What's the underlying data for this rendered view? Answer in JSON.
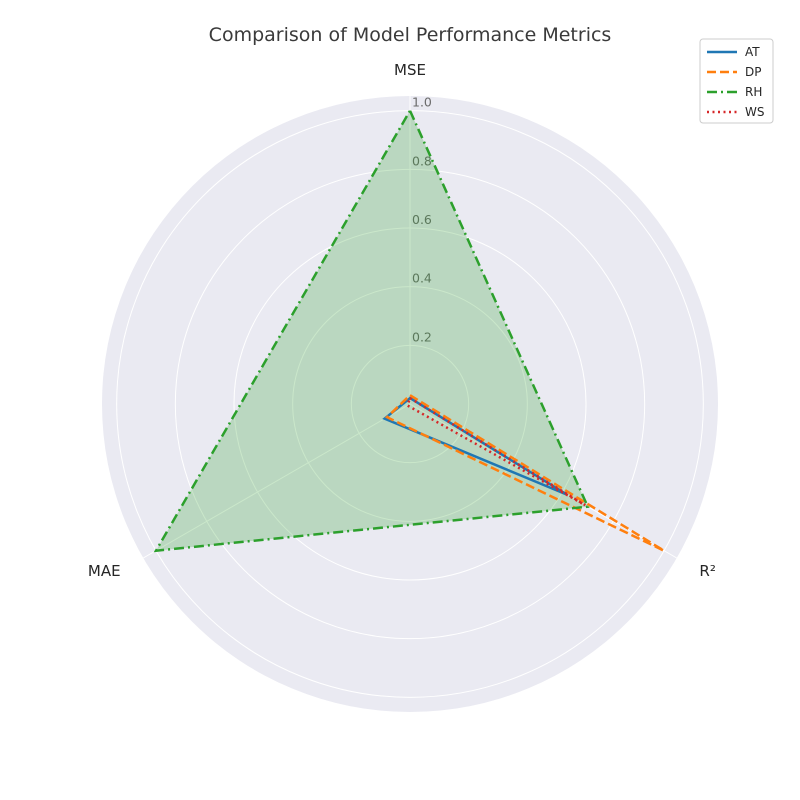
{
  "chart_data": {
    "type": "radar",
    "title": "Comparison of Model Performance Metrics",
    "axes": [
      "MSE",
      "R²",
      "MAE"
    ],
    "rlim": [
      0,
      1.05
    ],
    "rticks": [
      0.2,
      0.4,
      0.6,
      0.8,
      1.0
    ],
    "rtick_labels": [
      "0.2",
      "0.4",
      "0.6",
      "0.8",
      "1.0"
    ],
    "grid": true,
    "legend_position": "top-right",
    "series": [
      {
        "name": "AT",
        "values": [
          0.02,
          0.62,
          0.1
        ],
        "color": "#1f77b4",
        "dash": "solid",
        "fill": false
      },
      {
        "name": "DP",
        "values": [
          0.03,
          1.0,
          0.09
        ],
        "color": "#ff7f0e",
        "dash": "dashed",
        "fill": false
      },
      {
        "name": "RH",
        "values": [
          1.0,
          0.7,
          1.0
        ],
        "color": "#2ca02c",
        "dash": "dashdot",
        "fill": true
      },
      {
        "name": "WS",
        "values": [
          0.02,
          0.69,
          0.01
        ],
        "color": "#d62728",
        "dash": "dotted",
        "fill": false
      }
    ]
  }
}
